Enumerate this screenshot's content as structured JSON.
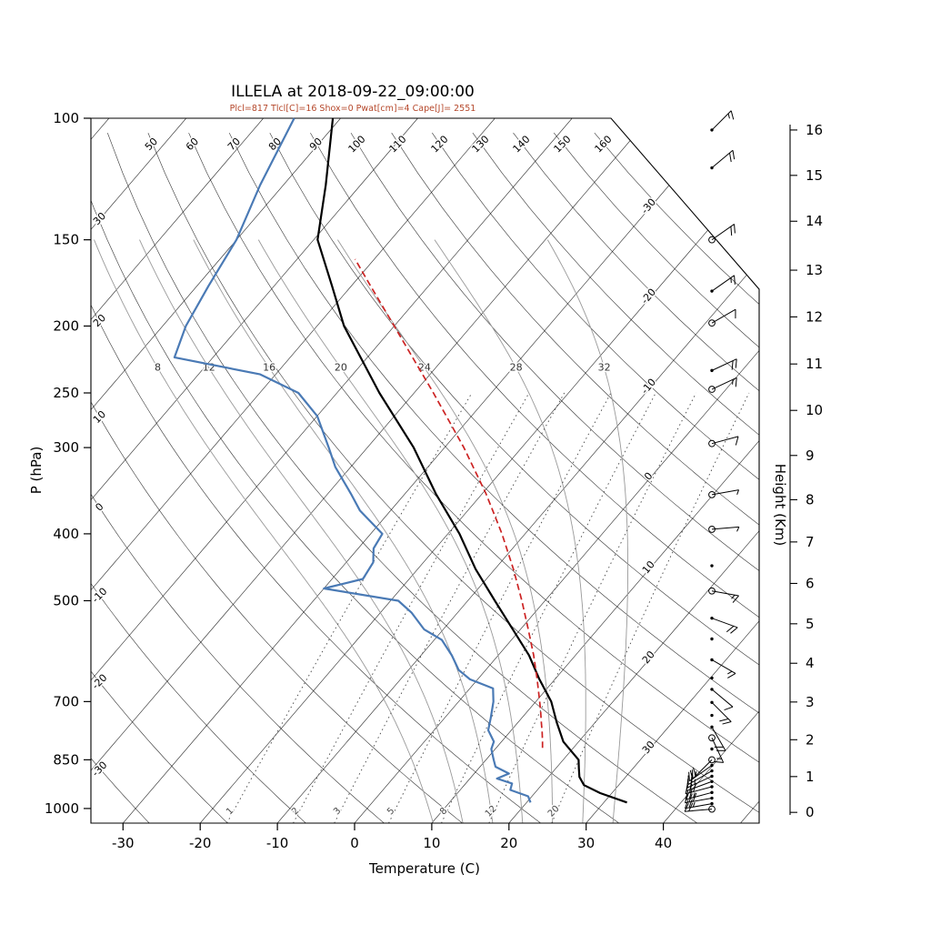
{
  "title": "ILLELA at 2018-09-22_09:00:00",
  "subtitle": "Plcl=817 Tlcl[C]=16 Shox=0 Pwat[cm]=4 Cape[J]= 2551",
  "colors": {
    "temperature": "#000000",
    "dewpoint": "#4a7ab5",
    "parcel": "#cc2222",
    "subtitle": "#b5472a",
    "moist_adiabat": "#999999",
    "grid": "#000000",
    "mixing_ratio": "#444444"
  },
  "axes": {
    "pressure": {
      "label": "P (hPa)",
      "ticks": [
        100,
        150,
        200,
        250,
        300,
        400,
        500,
        700,
        850,
        1000
      ]
    },
    "temperature": {
      "label": "Temperature (C)",
      "ticks": [
        -30,
        -20,
        -10,
        0,
        10,
        20,
        30,
        40
      ]
    },
    "height": {
      "label": "Height (Km)",
      "ticks_km_p": [
        [
          0,
          1013
        ],
        [
          1,
          899
        ],
        [
          2,
          795
        ],
        [
          3,
          701
        ],
        [
          4,
          616
        ],
        [
          5,
          540
        ],
        [
          6,
          472
        ],
        [
          7,
          411
        ],
        [
          8,
          357
        ],
        [
          9,
          308
        ],
        [
          10,
          265
        ],
        [
          11,
          227
        ],
        [
          12,
          194
        ],
        [
          13,
          166
        ],
        [
          14,
          141
        ],
        [
          15,
          121
        ],
        [
          16,
          104
        ]
      ]
    }
  },
  "grid": {
    "isotherm_values": [
      -120,
      -110,
      -100,
      -90,
      -80,
      -70,
      -60,
      -50,
      -40,
      -30,
      -20,
      -10,
      0,
      10,
      20,
      30,
      40,
      50
    ],
    "isotherm_label_values": [
      -30,
      -20,
      -10,
      0,
      10,
      20,
      30
    ],
    "dry_adiabat_values": [
      -30,
      -20,
      -10,
      0,
      10,
      20,
      30,
      40,
      50,
      60,
      70,
      80,
      90,
      100,
      110,
      120,
      130,
      140,
      150,
      160
    ],
    "dry_adiabat_top_labels": [
      50,
      60,
      70,
      80,
      90,
      100,
      110,
      120,
      130,
      140,
      150,
      160
    ],
    "dry_adiabat_left_labels": [
      40,
      30,
      20,
      10,
      0,
      -10,
      -20,
      -30
    ],
    "moist_adiabat_values": [
      8,
      12,
      16,
      20,
      24,
      28,
      32
    ],
    "mixing_ratio_values": [
      1,
      2,
      3,
      5,
      8,
      12,
      20
    ]
  },
  "chart_data": {
    "type": "skewt-logp",
    "station": "ILLELA",
    "datetime": "2018-09-22_09:00:00",
    "params": {
      "Plcl": 817,
      "Tlcl_C": 16,
      "Shox": 0,
      "Pwat_cm": 4,
      "Cape_J": 2551
    },
    "pressure_range_hPa": [
      100,
      1050
    ],
    "temp_axis_range_C": [
      -34,
      52
    ],
    "series": [
      {
        "name": "temperature",
        "color": "#000000",
        "style": "solid",
        "points_p_T": [
          [
            980,
            33
          ],
          [
            950,
            28.5
          ],
          [
            925,
            25.5
          ],
          [
            900,
            24
          ],
          [
            875,
            23
          ],
          [
            850,
            22
          ],
          [
            800,
            18
          ],
          [
            750,
            15
          ],
          [
            700,
            12
          ],
          [
            650,
            8
          ],
          [
            600,
            4
          ],
          [
            550,
            -1
          ],
          [
            500,
            -6.5
          ],
          [
            450,
            -12.5
          ],
          [
            400,
            -18.5
          ],
          [
            350,
            -26
          ],
          [
            300,
            -34
          ],
          [
            250,
            -44.5
          ],
          [
            200,
            -56.5
          ],
          [
            175,
            -62.5
          ],
          [
            150,
            -69.5
          ],
          [
            125,
            -74.5
          ],
          [
            100,
            -81
          ]
        ]
      },
      {
        "name": "dewpoint",
        "color": "#4a7ab5",
        "style": "solid",
        "points_p_T": [
          [
            980,
            20.5
          ],
          [
            960,
            19.5
          ],
          [
            940,
            16.5
          ],
          [
            920,
            16
          ],
          [
            905,
            13.5
          ],
          [
            890,
            14.5
          ],
          [
            870,
            12
          ],
          [
            850,
            11
          ],
          [
            820,
            9.5
          ],
          [
            800,
            9
          ],
          [
            770,
            7
          ],
          [
            740,
            6
          ],
          [
            700,
            4.5
          ],
          [
            670,
            3
          ],
          [
            650,
            -1
          ],
          [
            630,
            -3.5
          ],
          [
            600,
            -6
          ],
          [
            570,
            -9
          ],
          [
            550,
            -12.5
          ],
          [
            520,
            -16
          ],
          [
            500,
            -19
          ],
          [
            480,
            -30
          ],
          [
            465,
            -26
          ],
          [
            440,
            -26.5
          ],
          [
            420,
            -28
          ],
          [
            400,
            -28.5
          ],
          [
            370,
            -34
          ],
          [
            350,
            -37
          ],
          [
            320,
            -42
          ],
          [
            300,
            -45
          ],
          [
            270,
            -50
          ],
          [
            250,
            -55
          ],
          [
            235,
            -62
          ],
          [
            222,
            -75
          ],
          [
            200,
            -77
          ],
          [
            175,
            -78.5
          ],
          [
            150,
            -80
          ],
          [
            125,
            -83
          ],
          [
            100,
            -86
          ]
        ]
      },
      {
        "name": "parcel_ascent",
        "color": "#cc2222",
        "style": "dashed",
        "points_p_T": [
          [
            817,
            16
          ],
          [
            800,
            15.3
          ],
          [
            775,
            14.2
          ],
          [
            750,
            13
          ],
          [
            725,
            11.8
          ],
          [
            700,
            10.5
          ],
          [
            650,
            7.7
          ],
          [
            600,
            4.6
          ],
          [
            550,
            1
          ],
          [
            500,
            -3
          ],
          [
            450,
            -7.6
          ],
          [
            400,
            -13
          ],
          [
            350,
            -19.5
          ],
          [
            300,
            -27.5
          ],
          [
            250,
            -37.5
          ],
          [
            200,
            -50
          ],
          [
            175,
            -57.5
          ],
          [
            160,
            -62.5
          ]
        ]
      }
    ],
    "wind_barbs_p_dir_spd_sym": [
      [
        104,
        45,
        15,
        "b"
      ],
      [
        118,
        50,
        20,
        "b"
      ],
      [
        150,
        55,
        20,
        "cb"
      ],
      [
        178,
        55,
        15,
        "b"
      ],
      [
        198,
        60,
        10,
        "cb"
      ],
      [
        232,
        65,
        20,
        "db"
      ],
      [
        247,
        65,
        15,
        "cb"
      ],
      [
        296,
        75,
        10,
        "cb"
      ],
      [
        351,
        80,
        5,
        "cb"
      ],
      [
        394,
        85,
        5,
        "cb"
      ],
      [
        445,
        90,
        0,
        "d"
      ],
      [
        484,
        100,
        15,
        "cb"
      ],
      [
        530,
        110,
        20,
        "b"
      ],
      [
        568,
        115,
        0,
        "d"
      ],
      [
        609,
        120,
        15,
        "b"
      ],
      [
        647,
        125,
        0,
        "d"
      ],
      [
        672,
        130,
        10,
        "b"
      ],
      [
        702,
        135,
        20,
        "b"
      ],
      [
        733,
        140,
        0,
        "d"
      ],
      [
        762,
        150,
        20,
        "b"
      ],
      [
        790,
        155,
        15,
        "cb"
      ],
      [
        820,
        200,
        0,
        "d"
      ],
      [
        850,
        225,
        20,
        "cb"
      ],
      [
        866,
        235,
        25,
        "b"
      ],
      [
        882,
        240,
        20,
        "db"
      ],
      [
        898,
        245,
        25,
        "b"
      ],
      [
        914,
        250,
        20,
        "db"
      ],
      [
        930,
        255,
        30,
        "b"
      ],
      [
        948,
        255,
        25,
        "db"
      ],
      [
        966,
        260,
        30,
        "b"
      ],
      [
        984,
        260,
        25,
        "db"
      ],
      [
        1002,
        265,
        20,
        "cb"
      ]
    ]
  }
}
